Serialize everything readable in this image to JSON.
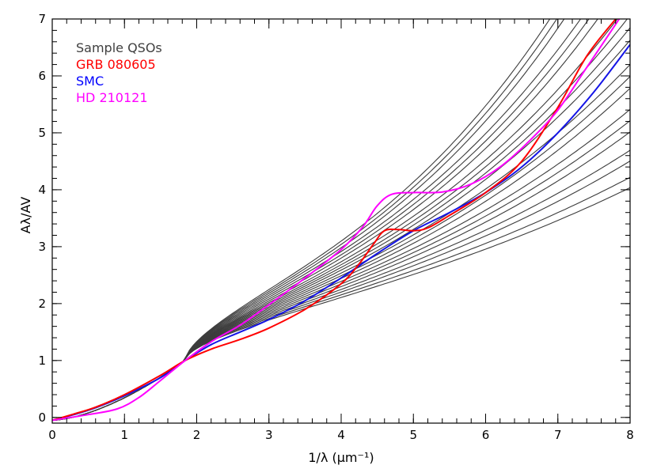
{
  "chart_data": {
    "type": "line",
    "title": "",
    "xlabel": "1/λ (μm⁻¹)",
    "ylabel": "Aλ/AV",
    "xlim": [
      0,
      8
    ],
    "ylim": [
      -0.1,
      7.0
    ],
    "x_ticks": [
      "0",
      "1",
      "2",
      "3",
      "4",
      "5",
      "6",
      "7",
      "8"
    ],
    "y_ticks": [
      "0",
      "1",
      "2",
      "3",
      "4",
      "5",
      "6",
      "7"
    ],
    "grid": false,
    "legend_position": "top-left",
    "legend": [
      {
        "label": "Sample QSOs",
        "color": "#404040"
      },
      {
        "label": "GRB 080605",
        "color": "#ff0000"
      },
      {
        "label": "SMC",
        "color": "#0000ff"
      },
      {
        "label": "HD 210121",
        "color": "#ff00ff"
      }
    ],
    "series": [
      {
        "name": "SMC",
        "color": "#1414e6",
        "points": [
          [
            0.0,
            -0.05
          ],
          [
            0.3,
            0.05
          ],
          [
            0.6,
            0.17
          ],
          [
            1.0,
            0.38
          ],
          [
            1.5,
            0.7
          ],
          [
            1.84,
            1.0
          ],
          [
            2.2,
            1.28
          ],
          [
            2.6,
            1.5
          ],
          [
            3.0,
            1.72
          ],
          [
            3.5,
            2.05
          ],
          [
            4.0,
            2.45
          ],
          [
            4.5,
            2.88
          ],
          [
            5.0,
            3.28
          ],
          [
            5.5,
            3.6
          ],
          [
            6.0,
            3.95
          ],
          [
            6.5,
            4.4
          ],
          [
            7.0,
            5.0
          ],
          [
            7.5,
            5.72
          ],
          [
            8.0,
            6.55
          ]
        ]
      },
      {
        "name": "GRB 080605",
        "color": "#ff0000",
        "points": [
          [
            0.0,
            -0.05
          ],
          [
            0.3,
            0.06
          ],
          [
            0.6,
            0.18
          ],
          [
            1.0,
            0.4
          ],
          [
            1.5,
            0.74
          ],
          [
            1.84,
            1.0
          ],
          [
            2.2,
            1.2
          ],
          [
            2.6,
            1.37
          ],
          [
            3.0,
            1.57
          ],
          [
            3.5,
            1.9
          ],
          [
            4.0,
            2.35
          ],
          [
            4.25,
            2.7
          ],
          [
            4.45,
            3.05
          ],
          [
            4.6,
            3.28
          ],
          [
            4.8,
            3.3
          ],
          [
            5.0,
            3.28
          ],
          [
            5.2,
            3.33
          ],
          [
            5.5,
            3.55
          ],
          [
            6.0,
            3.95
          ],
          [
            6.5,
            4.5
          ],
          [
            7.0,
            5.45
          ],
          [
            7.4,
            6.35
          ],
          [
            7.8,
            7.0
          ]
        ]
      },
      {
        "name": "HD 210121",
        "color": "#ff00ff",
        "points": [
          [
            0.0,
            -0.05
          ],
          [
            0.5,
            0.05
          ],
          [
            0.9,
            0.15
          ],
          [
            1.2,
            0.35
          ],
          [
            1.5,
            0.65
          ],
          [
            1.84,
            1.0
          ],
          [
            2.2,
            1.33
          ],
          [
            2.6,
            1.62
          ],
          [
            3.0,
            1.98
          ],
          [
            3.5,
            2.45
          ],
          [
            4.0,
            2.95
          ],
          [
            4.3,
            3.35
          ],
          [
            4.5,
            3.72
          ],
          [
            4.7,
            3.92
          ],
          [
            5.0,
            3.95
          ],
          [
            5.4,
            3.96
          ],
          [
            5.8,
            4.1
          ],
          [
            6.2,
            4.4
          ],
          [
            6.6,
            4.85
          ],
          [
            7.0,
            5.4
          ],
          [
            7.4,
            6.15
          ],
          [
            7.85,
            7.0
          ]
        ]
      }
    ],
    "qso_curves": [
      {
        "a": 1.5,
        "b": 0.5,
        "c": 0.55,
        "e": 2.0
      },
      {
        "a": 1.53,
        "b": 0.55,
        "c": 0.6,
        "e": 2.0
      },
      {
        "a": 1.56,
        "b": 0.6,
        "c": 0.65,
        "e": 2.05
      },
      {
        "a": 1.59,
        "b": 0.65,
        "c": 0.7,
        "e": 2.05
      },
      {
        "a": 1.62,
        "b": 0.7,
        "c": 0.75,
        "e": 2.1
      },
      {
        "a": 1.65,
        "b": 0.75,
        "c": 0.8,
        "e": 2.1
      },
      {
        "a": 1.68,
        "b": 0.8,
        "c": 0.85,
        "e": 2.1
      },
      {
        "a": 1.71,
        "b": 0.85,
        "c": 0.9,
        "e": 2.15
      },
      {
        "a": 1.74,
        "b": 0.9,
        "c": 0.95,
        "e": 2.15
      },
      {
        "a": 1.77,
        "b": 0.95,
        "c": 1.0,
        "e": 2.15
      },
      {
        "a": 1.8,
        "b": 1.0,
        "c": 1.05,
        "e": 2.2
      },
      {
        "a": 1.83,
        "b": 1.05,
        "c": 1.1,
        "e": 2.2
      },
      {
        "a": 1.86,
        "b": 1.1,
        "c": 1.15,
        "e": 2.2
      },
      {
        "a": 1.9,
        "b": 1.15,
        "c": 1.2,
        "e": 2.2
      },
      {
        "a": 1.95,
        "b": 1.2,
        "c": 1.25,
        "e": 2.25
      },
      {
        "a": 2.0,
        "b": 1.25,
        "c": 1.3,
        "e": 2.25
      },
      {
        "a": 2.05,
        "b": 1.3,
        "c": 1.35,
        "e": 2.25
      },
      {
        "a": 2.1,
        "b": 1.35,
        "c": 1.4,
        "e": 2.3
      },
      {
        "a": 2.15,
        "b": 1.4,
        "c": 1.45,
        "e": 2.3
      },
      {
        "a": 2.2,
        "b": 1.45,
        "c": 1.5,
        "e": 2.3
      }
    ]
  }
}
